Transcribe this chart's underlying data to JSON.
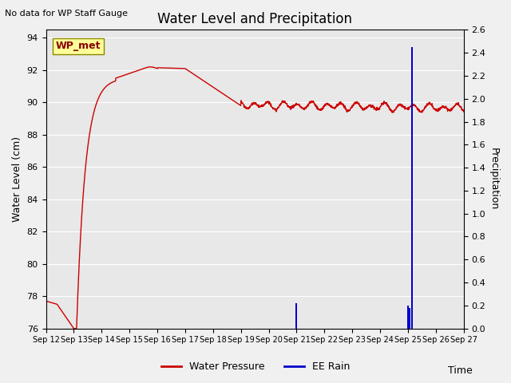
{
  "title": "Water Level and Precipitation",
  "top_left_text": "No data for WP Staff Gauge",
  "xlabel": "Time",
  "ylabel_left": "Water Level (cm)",
  "ylabel_right": "Precipitation",
  "legend_label1": "Water Pressure",
  "legend_label2": "EE Rain",
  "annotation_label": "WP_met",
  "ylim_left": [
    76,
    94.5
  ],
  "ylim_right": [
    0.0,
    2.6
  ],
  "yticks_left": [
    76,
    78,
    80,
    82,
    84,
    86,
    88,
    90,
    92,
    94
  ],
  "yticks_right": [
    0.0,
    0.2,
    0.4,
    0.6,
    0.8,
    1.0,
    1.2,
    1.4,
    1.6,
    1.8,
    2.0,
    2.2,
    2.4,
    2.6
  ],
  "xtick_labels": [
    "Sep 12",
    "Sep 13",
    "Sep 14",
    "Sep 15",
    "Sep 16",
    "Sep 17",
    "Sep 18",
    "Sep 19",
    "Sep 20",
    "Sep 21",
    "Sep 22",
    "Sep 23",
    "Sep 24",
    "Sep 25",
    "Sep 26",
    "Sep 27"
  ],
  "water_pressure_color": "#cc0000",
  "rain_color": "#0000cc",
  "plot_bg_color": "#e8e8e8",
  "fig_bg_color": "#f0f0f0",
  "annotation_bg": "#ffff99",
  "annotation_border": "#888800",
  "gridcolor": "#ffffff",
  "figsize": [
    6.4,
    4.8
  ],
  "dpi": 100
}
